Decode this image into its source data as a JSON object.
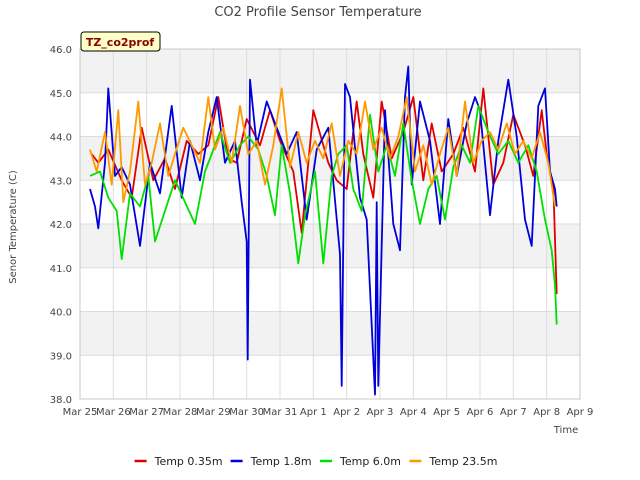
{
  "chart_data": {
    "type": "line",
    "title": "CO2 Profile Sensor Temperature",
    "xlabel": "Time",
    "ylabel": "Senor Temperature (C)",
    "site_label": "TZ_co2prof",
    "ylim": [
      38.0,
      46.0
    ],
    "yticks": [
      38.0,
      39.0,
      40.0,
      41.0,
      42.0,
      43.0,
      44.0,
      45.0,
      46.0
    ],
    "ytick_labels": [
      "38.0",
      "39.0",
      "40.0",
      "41.0",
      "42.0",
      "43.0",
      "44.0",
      "45.0",
      "46.0"
    ],
    "xlim": [
      "Mar 25",
      "Apr 9"
    ],
    "xtick_labels": [
      "Mar 25",
      "Mar 26",
      "Mar 27",
      "Mar 28",
      "Mar 29",
      "Mar 30",
      "Mar 31",
      "Apr 1",
      "Apr 2",
      "Apr 3",
      "Apr 4",
      "Apr 5",
      "Apr 6",
      "Apr 7",
      "Apr 8",
      "Apr 9"
    ],
    "grid": true,
    "banded_background": true,
    "legend_position": "bottom",
    "series": [
      {
        "name": "Temp 0.35m",
        "color": "#e00000",
        "x": [
          0.35,
          0.55,
          0.85,
          1.25,
          1.55,
          1.85,
          2.2,
          2.55,
          2.85,
          3.2,
          3.55,
          3.85,
          4.15,
          4.45,
          4.7,
          5.0,
          5.4,
          5.7,
          6.0,
          6.4,
          6.65,
          7.0,
          7.45,
          7.7,
          8.0,
          8.3,
          8.5,
          8.8,
          9.05,
          9.35,
          9.7,
          10.0,
          10.3,
          10.55,
          10.85,
          11.2,
          11.5,
          11.85,
          12.1,
          12.4,
          12.7,
          13.0,
          13.35,
          13.6,
          13.85,
          14.0,
          14.1,
          14.2,
          14.3
        ],
        "values": [
          43.6,
          43.4,
          43.7,
          43.0,
          42.6,
          44.2,
          43.0,
          43.5,
          42.8,
          43.9,
          43.6,
          43.8,
          44.9,
          43.5,
          43.4,
          44.4,
          43.8,
          44.6,
          43.9,
          43.2,
          41.8,
          44.6,
          43.4,
          43.0,
          42.8,
          44.8,
          43.6,
          42.6,
          44.8,
          43.5,
          44.1,
          44.9,
          43.0,
          44.3,
          43.2,
          43.6,
          44.2,
          43.2,
          45.1,
          42.9,
          43.4,
          44.5,
          43.8,
          43.1,
          44.6,
          43.6,
          43.2,
          42.9,
          40.4
        ]
      },
      {
        "name": "Temp 1.8m",
        "color": "#0000dd",
        "x": [
          0.3,
          0.45,
          0.55,
          0.75,
          0.85,
          1.05,
          1.25,
          1.5,
          1.8,
          2.1,
          2.4,
          2.75,
          3.05,
          3.3,
          3.6,
          3.85,
          4.1,
          4.35,
          4.65,
          4.85,
          5.0,
          5.03,
          5.1,
          5.3,
          5.6,
          5.9,
          6.2,
          6.5,
          6.8,
          7.1,
          7.45,
          7.8,
          7.85,
          7.95,
          8.1,
          8.4,
          8.6,
          8.85,
          8.9,
          8.95,
          9.15,
          9.4,
          9.6,
          9.75,
          9.85,
          9.95,
          10.2,
          10.5,
          10.8,
          11.05,
          11.3,
          11.6,
          11.85,
          12.0,
          12.3,
          12.55,
          12.85,
          13.1,
          13.35,
          13.55,
          13.75,
          13.95,
          14.1,
          14.25,
          14.3
        ],
        "values": [
          42.8,
          42.4,
          41.9,
          43.4,
          45.1,
          43.1,
          43.3,
          42.9,
          41.5,
          43.4,
          42.7,
          44.7,
          42.6,
          43.9,
          43.0,
          44.1,
          44.9,
          43.4,
          43.9,
          42.5,
          41.6,
          38.9,
          45.3,
          43.8,
          44.8,
          44.2,
          43.6,
          44.1,
          42.1,
          43.7,
          44.2,
          41.3,
          38.3,
          45.2,
          44.9,
          42.6,
          42.1,
          38.1,
          42.5,
          38.3,
          44.6,
          42.0,
          41.4,
          44.9,
          45.6,
          42.9,
          44.8,
          43.9,
          42.0,
          44.4,
          43.1,
          44.3,
          44.9,
          44.6,
          42.2,
          43.9,
          45.3,
          44.0,
          42.1,
          41.5,
          44.7,
          45.1,
          43.2,
          42.8,
          42.4
        ]
      },
      {
        "name": "Temp 6.0m",
        "color": "#00e000",
        "x": [
          0.3,
          0.6,
          0.85,
          1.1,
          1.25,
          1.5,
          1.8,
          2.05,
          2.25,
          2.55,
          2.85,
          3.15,
          3.45,
          3.75,
          3.95,
          4.2,
          4.5,
          4.8,
          5.05,
          5.35,
          5.6,
          5.85,
          6.05,
          6.3,
          6.55,
          6.75,
          7.05,
          7.3,
          7.55,
          7.75,
          8.0,
          8.2,
          8.45,
          8.7,
          8.95,
          9.2,
          9.45,
          9.7,
          9.95,
          10.2,
          10.45,
          10.7,
          10.95,
          11.2,
          11.45,
          11.7,
          11.95,
          12.25,
          12.55,
          12.85,
          13.15,
          13.45,
          13.7,
          13.95,
          14.15,
          14.25,
          14.3
        ],
        "values": [
          43.1,
          43.2,
          42.6,
          42.3,
          41.2,
          42.7,
          42.4,
          43.1,
          41.6,
          42.3,
          43.0,
          42.5,
          42.0,
          43.2,
          43.6,
          44.1,
          43.4,
          43.8,
          44.0,
          43.7,
          43.1,
          42.2,
          43.8,
          42.7,
          41.1,
          42.2,
          43.2,
          41.1,
          43.1,
          43.6,
          43.8,
          42.8,
          42.3,
          44.5,
          43.2,
          43.8,
          43.1,
          44.3,
          43.0,
          42.0,
          42.8,
          43.1,
          42.1,
          43.3,
          43.8,
          43.4,
          44.7,
          44.1,
          43.6,
          43.9,
          43.4,
          43.8,
          43.2,
          42.1,
          41.4,
          40.6,
          39.7
        ]
      },
      {
        "name": "Temp 23.5m",
        "color": "#ff9900",
        "x": [
          0.3,
          0.5,
          0.75,
          0.95,
          1.15,
          1.3,
          1.5,
          1.75,
          1.95,
          2.15,
          2.4,
          2.65,
          2.85,
          3.1,
          3.35,
          3.6,
          3.85,
          4.05,
          4.3,
          4.55,
          4.8,
          5.05,
          5.3,
          5.55,
          5.8,
          6.05,
          6.3,
          6.55,
          6.8,
          7.05,
          7.3,
          7.55,
          7.8,
          8.05,
          8.3,
          8.55,
          8.8,
          9.05,
          9.3,
          9.55,
          9.8,
          10.05,
          10.3,
          10.55,
          10.8,
          11.05,
          11.3,
          11.55,
          11.8,
          12.05,
          12.3,
          12.55,
          12.8,
          13.05,
          13.3,
          13.55,
          13.8,
          14.05,
          14.25
        ],
        "values": [
          43.7,
          43.2,
          44.1,
          42.9,
          44.6,
          42.5,
          43.2,
          44.8,
          42.9,
          43.4,
          44.3,
          43.1,
          43.6,
          44.2,
          43.8,
          43.4,
          44.9,
          43.7,
          44.2,
          43.4,
          44.7,
          43.6,
          43.9,
          42.9,
          43.8,
          45.1,
          43.3,
          44.1,
          43.4,
          43.9,
          43.5,
          44.3,
          43.1,
          43.9,
          43.6,
          44.8,
          43.7,
          44.2,
          43.5,
          44.0,
          44.9,
          43.2,
          43.8,
          42.9,
          43.6,
          44.2,
          43.1,
          44.8,
          43.4,
          43.9,
          44.1,
          43.7,
          44.3,
          43.6,
          43.9,
          43.5,
          44.1,
          43.4,
          42.4
        ]
      }
    ]
  }
}
